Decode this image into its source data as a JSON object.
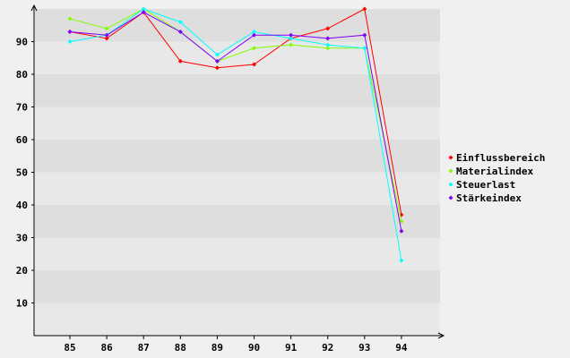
{
  "chart_data": {
    "type": "line",
    "x": [
      "85",
      "86",
      "87",
      "88",
      "89",
      "90",
      "91",
      "92",
      "93",
      "94"
    ],
    "ylim": [
      0,
      100
    ],
    "y_ticks": [
      "10",
      "20",
      "30",
      "40",
      "50",
      "60",
      "70",
      "80",
      "90"
    ],
    "grid": "horizontal-bands",
    "legend_position": "right",
    "series": [
      {
        "name": "Einflussbereich",
        "color": "#ff0000",
        "values": [
          93,
          91,
          99,
          84,
          82,
          83,
          91,
          94,
          100,
          37
        ]
      },
      {
        "name": "Materialindex",
        "color": "#80ff00",
        "values": [
          97,
          94,
          100,
          93,
          84,
          88,
          89,
          88,
          88,
          35
        ]
      },
      {
        "name": "Steuerlast",
        "color": "#00ffff",
        "values": [
          90,
          92,
          100,
          96,
          86,
          93,
          91,
          89,
          88,
          23
        ]
      },
      {
        "name": "Stärkeindex",
        "color": "#8000ff",
        "values": [
          93,
          92,
          99,
          93,
          84,
          92,
          92,
          91,
          92,
          32
        ]
      }
    ]
  }
}
